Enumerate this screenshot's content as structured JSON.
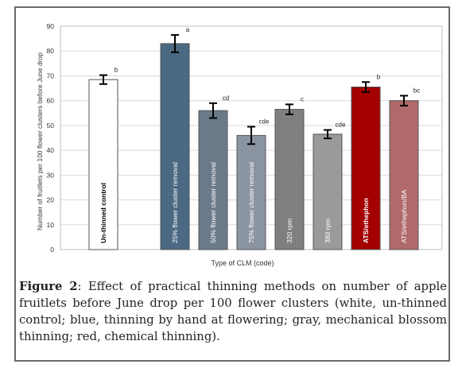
{
  "chart_data": {
    "type": "bar",
    "xlabel": "Type of CLM (code)",
    "ylabel": "Number of fruitlets per 100 flower clusters before June drop",
    "ylim": [
      0,
      90
    ],
    "yticks": [
      "0",
      "10",
      "20",
      "30",
      "40",
      "50",
      "60",
      "70",
      "80",
      "90"
    ],
    "grid": true,
    "categories": [
      "Un-thinned control",
      "25% flower cluster removal",
      "50% flower cluster removal",
      "75% flower cluster removal",
      "320 rpm",
      "380 rpm",
      "ATS/ethephon",
      "ATS/ethephon/BA"
    ],
    "values": [
      68.5,
      83,
      56,
      46,
      56.5,
      46.5,
      65.5,
      60
    ],
    "errors": [
      1.8,
      3.5,
      3.0,
      3.5,
      2.0,
      1.7,
      2.0,
      2.0
    ],
    "letters": [
      "b",
      "a",
      "cd",
      "cde",
      "c",
      "cde",
      "b",
      "bc"
    ],
    "colors": [
      "#ffffff",
      "#4b6982",
      "#6b7a89",
      "#8b95a2",
      "#7f7f7f",
      "#9a9a9a",
      "#a40000",
      "#b06a6a"
    ],
    "label_colors": [
      "#000000",
      "#ffffff",
      "#ffffff",
      "#ffffff",
      "#ffffff",
      "#ffffff",
      "#ffffff",
      "#ffffff"
    ],
    "label_bold": [
      true,
      false,
      false,
      false,
      false,
      false,
      true,
      false
    ]
  },
  "caption": {
    "label": "Figure 2",
    "text": ": Effect of practical thinning methods on number of apple fruitlets before June drop per 100 flower clusters (white, un-thinned control; blue, thinning by hand at flowering; gray, mechanical blossom thinning; red, chemical thinning)."
  }
}
